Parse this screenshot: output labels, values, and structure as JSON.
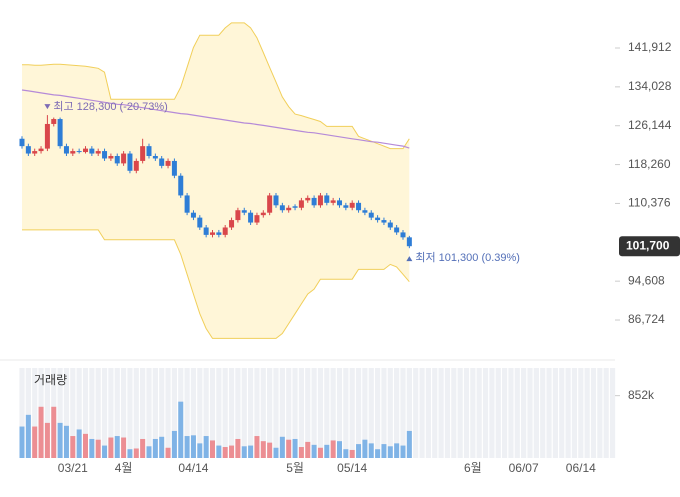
{
  "chart_data": {
    "type": "candlestick",
    "categories": [
      null,
      null,
      null,
      null,
      null,
      null,
      null,
      null,
      "03/21",
      null,
      null,
      null,
      null,
      null,
      null,
      null,
      "4월",
      null,
      null,
      null,
      null,
      null,
      null,
      null,
      null,
      null,
      null,
      "04/14",
      null,
      null,
      null,
      null,
      null,
      null,
      null,
      null,
      null,
      null,
      null,
      null,
      null,
      null,
      null,
      "5월",
      null,
      null,
      null,
      null,
      null,
      null,
      null,
      null,
      "05/14",
      null,
      null,
      null,
      null,
      null,
      null,
      null,
      null,
      null
    ],
    "future_categories": [
      null,
      null,
      null,
      null,
      null,
      null,
      null,
      null,
      null,
      "6월",
      null,
      null,
      null,
      null,
      null,
      null,
      null,
      "06/07",
      null,
      null,
      null,
      null,
      null,
      null,
      null,
      null,
      "06/14",
      null,
      null,
      null,
      null,
      null
    ],
    "open": [
      123500,
      122000,
      120500,
      121000,
      121500,
      126500,
      127500,
      122000,
      120500,
      121000,
      120800,
      121500,
      120500,
      121000,
      119500,
      120000,
      118500,
      120500,
      117000,
      119000,
      122000,
      120000,
      119500,
      118000,
      119000,
      116000,
      112000,
      108500,
      107500,
      105500,
      104000,
      104500,
      104000,
      105500,
      107000,
      109000,
      108500,
      106500,
      108000,
      108500,
      112000,
      110000,
      109000,
      109800,
      109500,
      111000,
      111500,
      110000,
      112000,
      110500,
      111000,
      110000,
      109500,
      110500,
      109000,
      108500,
      107500,
      107000,
      106500,
      105500,
      104500,
      103500
    ],
    "high": [
      124000,
      122500,
      121500,
      122000,
      128300,
      127800,
      127800,
      122500,
      121500,
      121500,
      122000,
      122000,
      121500,
      121500,
      120500,
      120500,
      121000,
      121000,
      119500,
      123500,
      122500,
      120500,
      120000,
      119500,
      119500,
      116500,
      112500,
      109000,
      108000,
      106000,
      105000,
      105000,
      106000,
      107500,
      109500,
      109500,
      109000,
      108500,
      109000,
      112500,
      112500,
      110500,
      110000,
      110200,
      111500,
      112000,
      112000,
      112500,
      112500,
      111500,
      111500,
      110500,
      111000,
      111000,
      109500,
      109000,
      108000,
      107500,
      107000,
      106000,
      105000,
      103800
    ],
    "low": [
      121500,
      120000,
      120000,
      120500,
      121000,
      126000,
      121500,
      120000,
      120000,
      120500,
      120500,
      120000,
      120000,
      119000,
      119000,
      118000,
      118000,
      116500,
      116500,
      118500,
      119500,
      119000,
      117500,
      117500,
      115500,
      111500,
      108000,
      107000,
      105000,
      103500,
      103500,
      103500,
      103500,
      105000,
      106500,
      108000,
      106000,
      106000,
      107500,
      108000,
      109500,
      108500,
      108500,
      109000,
      109000,
      110500,
      109500,
      109500,
      110000,
      110000,
      109500,
      109000,
      109000,
      108500,
      108000,
      107000,
      106500,
      106000,
      105000,
      104000,
      103000,
      101300
    ],
    "close": [
      122000,
      120500,
      121000,
      121500,
      126500,
      127500,
      122000,
      120500,
      121000,
      120800,
      121500,
      120500,
      121000,
      119500,
      120000,
      118500,
      120500,
      117000,
      119000,
      122000,
      120000,
      119500,
      118000,
      119000,
      116000,
      112000,
      108500,
      107500,
      105500,
      104000,
      104500,
      104000,
      105500,
      107000,
      109000,
      108500,
      106500,
      108000,
      108500,
      112000,
      110000,
      109000,
      109500,
      109500,
      111000,
      111500,
      110000,
      112000,
      110500,
      111000,
      110000,
      109500,
      110500,
      109000,
      108500,
      107500,
      107000,
      106500,
      105500,
      104500,
      103500,
      101700
    ],
    "up_color": "#d9474b",
    "down_color": "#2e7dd6",
    "band_upper": [
      138500,
      138500,
      138400,
      138400,
      138500,
      138600,
      138600,
      138500,
      138400,
      138300,
      138200,
      138000,
      137800,
      137000,
      131500,
      131500,
      131500,
      131500,
      131500,
      131500,
      131500,
      131500,
      131500,
      131500,
      131500,
      134000,
      138000,
      142000,
      144500,
      144500,
      144500,
      144500,
      146000,
      147000,
      147000,
      147000,
      146000,
      144000,
      141000,
      138000,
      135000,
      132000,
      130000,
      128500,
      128200,
      127800,
      127400,
      127000,
      126000,
      126000,
      126000,
      126000,
      126000,
      124000,
      123500,
      123000,
      122500,
      122000,
      121500,
      121500,
      121500,
      123500
    ],
    "band_lower": [
      105000,
      105000,
      105000,
      105000,
      105000,
      105000,
      105000,
      105000,
      105000,
      105000,
      105000,
      105000,
      105000,
      103000,
      103000,
      103000,
      103000,
      103000,
      103000,
      103000,
      103000,
      103000,
      103000,
      103000,
      103000,
      100000,
      96000,
      92000,
      88000,
      85000,
      83000,
      83000,
      83000,
      83000,
      83000,
      83000,
      83000,
      83000,
      83000,
      83000,
      83000,
      84000,
      86000,
      88000,
      90000,
      92000,
      93000,
      95000,
      95000,
      95000,
      95000,
      95000,
      95000,
      97000,
      97000,
      97000,
      97000,
      97000,
      98000,
      97500,
      96000,
      94500
    ],
    "band_color": "#f1cf5a",
    "long_line": [
      133400,
      133200,
      133000,
      132800,
      132600,
      132400,
      132300,
      132100,
      131900,
      131700,
      131500,
      131300,
      131100,
      130900,
      130700,
      130500,
      130400,
      130200,
      130000,
      129800,
      129600,
      129400,
      129200,
      129000,
      128800,
      128600,
      128500,
      128300,
      128100,
      127900,
      127700,
      127500,
      127300,
      127100,
      126900,
      126700,
      126600,
      126400,
      126200,
      126000,
      125800,
      125600,
      125400,
      125200,
      125000,
      124800,
      124700,
      124500,
      124300,
      124100,
      123900,
      123700,
      123500,
      123300,
      123100,
      122900,
      122800,
      122600,
      122400,
      122200,
      122000,
      121600
    ],
    "long_line_color": "#b58ad8",
    "ylim": [
      79020,
      148810
    ],
    "yticks": [
      {
        "value": 141912,
        "label": "141,912"
      },
      {
        "value": 134028,
        "label": "134,028"
      },
      {
        "value": 126144,
        "label": "126,144"
      },
      {
        "value": 118260,
        "label": "118,260"
      },
      {
        "value": 110376,
        "label": "110,376"
      },
      {
        "value": 94608,
        "label": "94,608"
      },
      {
        "value": 86724,
        "label": "86,724"
      }
    ],
    "last_price": {
      "value": 101700,
      "label": "101,700"
    },
    "high_annotation": "최고 128,300 (-20.73%)",
    "low_annotation": "최저 101,300 (0.39%)",
    "volume_title": "거래량",
    "volume": [
      430000,
      590000,
      430000,
      700000,
      480000,
      700000,
      480000,
      440000,
      300000,
      390000,
      330000,
      260000,
      250000,
      170000,
      280000,
      300000,
      280000,
      120000,
      130000,
      260000,
      160000,
      260000,
      290000,
      140000,
      370000,
      770000,
      300000,
      310000,
      200000,
      300000,
      240000,
      170000,
      150000,
      170000,
      260000,
      160000,
      170000,
      300000,
      230000,
      210000,
      140000,
      290000,
      250000,
      260000,
      150000,
      220000,
      180000,
      140000,
      180000,
      240000,
      230000,
      120000,
      110000,
      190000,
      250000,
      200000,
      120000,
      190000,
      160000,
      200000,
      170000,
      370000
    ],
    "volume_up_color": "#ec8e93",
    "volume_down_color": "#7fb3e6",
    "volume_ylim": [
      0,
      1230000
    ],
    "volume_yticks": [
      {
        "value": 852000,
        "label": "852k"
      }
    ]
  }
}
